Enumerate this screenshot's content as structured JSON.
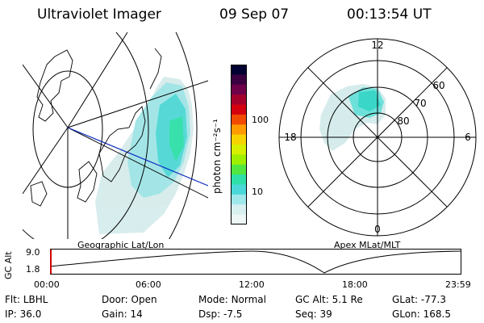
{
  "header": {
    "instrument": "Ultraviolet Imager",
    "date": "09 Sep 07",
    "time": "00:13:54 UT"
  },
  "geo_panel": {
    "label": "Geographic Lat/Lon"
  },
  "colorbar": {
    "unit_label": "photon cm⁻²s⁻¹",
    "ticks": [
      "100",
      "10"
    ],
    "colors": [
      "#000033",
      "#3b0040",
      "#6e004a",
      "#a4002c",
      "#d40010",
      "#f24a00",
      "#ff9b00",
      "#f7d400",
      "#d6f000",
      "#9ef000",
      "#52e640",
      "#2ee0a8",
      "#4ad8d8",
      "#9ee8ec",
      "#d8f0f0",
      "#eef6f6"
    ]
  },
  "polar_panel": {
    "label": "Apex MLat/MLT",
    "mlt_labels": {
      "top": "12",
      "left": "18",
      "right": "6",
      "bottom": "0"
    },
    "lat_labels": [
      "60",
      "70",
      "80"
    ]
  },
  "altitude_plot": {
    "ylabel": "GC Alt",
    "yticks": [
      "9.0",
      "1.8"
    ],
    "xticks": [
      "00:00",
      "06:00",
      "12:00",
      "18:00",
      "23:59"
    ]
  },
  "info": {
    "row1": [
      {
        "k": "Flt:",
        "v": "LBHL"
      },
      {
        "k": "Door:",
        "v": "Open"
      },
      {
        "k": "Mode:",
        "v": "Normal"
      },
      {
        "k": "GC Alt:",
        "v": "5.1 Re"
      },
      {
        "k": "GLat:",
        "v": "-77.3"
      }
    ],
    "row2": [
      {
        "k": "IP:",
        "v": "36.0"
      },
      {
        "k": "Gain:",
        "v": "14"
      },
      {
        "k": "Dsp:",
        "v": "-7.5"
      },
      {
        "k": "Seq:",
        "v": "39"
      },
      {
        "k": "GLon:",
        "v": "168.5"
      }
    ]
  }
}
